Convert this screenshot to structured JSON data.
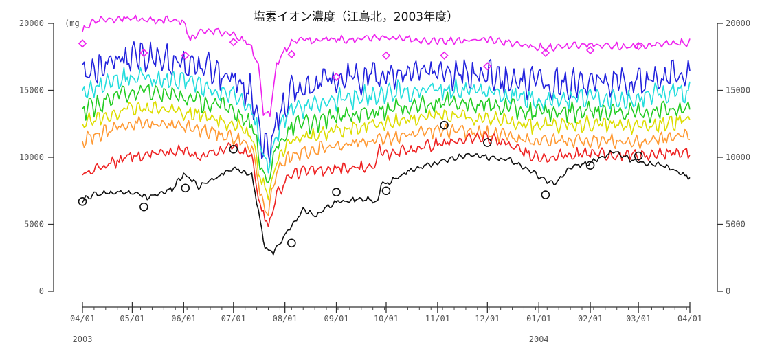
{
  "chart_data": {
    "type": "line",
    "title": "塩素イオン濃度（江島北，2003年度）",
    "unit_label": "(mg",
    "ylim": [
      0,
      20000
    ],
    "y_ticks": [
      0,
      5000,
      10000,
      15000,
      20000
    ],
    "y_tick_labels": [
      "0",
      "5000",
      "10000",
      "15000",
      "20000"
    ],
    "x_range": [
      "2003-04-01",
      "2004-04-01"
    ],
    "x_ticks": [
      "2003-04-01",
      "2003-05-01",
      "2003-06-01",
      "2003-07-01",
      "2003-08-01",
      "2003-09-01",
      "2003-10-01",
      "2003-11-01",
      "2003-12-01",
      "2004-01-01",
      "2004-02-01",
      "2004-03-01",
      "2004-04-01"
    ],
    "x_tick_labels": [
      "04/01",
      "05/01",
      "06/01",
      "07/01",
      "08/01",
      "09/01",
      "10/01",
      "11/01",
      "12/01",
      "01/01",
      "02/01",
      "03/01",
      "04/01"
    ],
    "year_labels": [
      {
        "date": "2003-04-01",
        "text": "2003"
      },
      {
        "date": "2004-01-01",
        "text": "2004"
      }
    ],
    "grid": false,
    "series": [
      {
        "color": "#ee22ee",
        "noise": 350,
        "points": [
          [
            "2003-04-01",
            19500
          ],
          [
            "2003-04-10",
            20300
          ],
          [
            "2003-05-01",
            20400
          ],
          [
            "2003-05-10",
            20200
          ],
          [
            "2003-05-20",
            20300
          ],
          [
            "2003-06-01",
            20100
          ],
          [
            "2003-06-05",
            18800
          ],
          [
            "2003-06-15",
            19600
          ],
          [
            "2003-07-01",
            19100
          ],
          [
            "2003-07-10",
            18600
          ],
          [
            "2003-07-16",
            17000
          ],
          [
            "2003-07-19",
            13400
          ],
          [
            "2003-07-23",
            13200
          ],
          [
            "2003-07-27",
            17000
          ],
          [
            "2003-08-05",
            18700
          ],
          [
            "2003-09-01",
            18800
          ],
          [
            "2003-10-01",
            18900
          ],
          [
            "2003-11-01",
            18700
          ],
          [
            "2003-12-01",
            18800
          ],
          [
            "2004-01-01",
            18200
          ],
          [
            "2004-02-01",
            18400
          ],
          [
            "2004-03-01",
            18300
          ],
          [
            "2004-04-01",
            18600
          ]
        ]
      },
      {
        "color": "#2222dd",
        "noise": 1500,
        "points": [
          [
            "2003-04-01",
            16300
          ],
          [
            "2003-05-01",
            17500
          ],
          [
            "2003-06-01",
            17000
          ],
          [
            "2003-07-01",
            16000
          ],
          [
            "2003-07-12",
            14800
          ],
          [
            "2003-07-18",
            11200
          ],
          [
            "2003-07-22",
            10200
          ],
          [
            "2003-07-27",
            12800
          ],
          [
            "2003-08-05",
            15000
          ],
          [
            "2003-09-01",
            15800
          ],
          [
            "2003-10-01",
            16200
          ],
          [
            "2003-11-01",
            16300
          ],
          [
            "2003-12-01",
            16000
          ],
          [
            "2004-01-01",
            15400
          ],
          [
            "2004-02-01",
            15600
          ],
          [
            "2004-03-01",
            15500
          ],
          [
            "2004-04-01",
            16400
          ]
        ]
      },
      {
        "color": "#22dddd",
        "noise": 1000,
        "points": [
          [
            "2003-04-01",
            15000
          ],
          [
            "2003-05-01",
            16000
          ],
          [
            "2003-06-01",
            15700
          ],
          [
            "2003-07-01",
            14600
          ],
          [
            "2003-07-12",
            13600
          ],
          [
            "2003-07-18",
            10400
          ],
          [
            "2003-07-22",
            9500
          ],
          [
            "2003-07-27",
            11800
          ],
          [
            "2003-08-05",
            13500
          ],
          [
            "2003-09-01",
            14300
          ],
          [
            "2003-10-01",
            14800
          ],
          [
            "2003-11-01",
            15100
          ],
          [
            "2003-12-01",
            14900
          ],
          [
            "2004-01-01",
            14300
          ],
          [
            "2004-02-01",
            14500
          ],
          [
            "2004-03-01",
            14400
          ],
          [
            "2004-04-01",
            15000
          ]
        ]
      },
      {
        "color": "#22cc22",
        "noise": 900,
        "points": [
          [
            "2003-04-01",
            13500
          ],
          [
            "2003-05-01",
            15000
          ],
          [
            "2003-06-01",
            14500
          ],
          [
            "2003-07-01",
            13500
          ],
          [
            "2003-07-12",
            12600
          ],
          [
            "2003-07-18",
            9200
          ],
          [
            "2003-07-22",
            8300
          ],
          [
            "2003-07-27",
            10800
          ],
          [
            "2003-08-05",
            12300
          ],
          [
            "2003-09-01",
            13000
          ],
          [
            "2003-10-01",
            13600
          ],
          [
            "2003-11-01",
            14100
          ],
          [
            "2003-12-01",
            13900
          ],
          [
            "2004-01-01",
            13300
          ],
          [
            "2004-02-01",
            13500
          ],
          [
            "2004-03-01",
            13300
          ],
          [
            "2004-04-01",
            13800
          ]
        ]
      },
      {
        "color": "#dddd00",
        "noise": 750,
        "points": [
          [
            "2003-04-01",
            12500
          ],
          [
            "2003-05-01",
            13800
          ],
          [
            "2003-06-01",
            13400
          ],
          [
            "2003-07-01",
            12500
          ],
          [
            "2003-07-12",
            11700
          ],
          [
            "2003-07-18",
            8100
          ],
          [
            "2003-07-22",
            7200
          ],
          [
            "2003-07-27",
            9800
          ],
          [
            "2003-08-05",
            11300
          ],
          [
            "2003-09-01",
            12000
          ],
          [
            "2003-10-01",
            12600
          ],
          [
            "2003-11-01",
            13100
          ],
          [
            "2003-12-01",
            12900
          ],
          [
            "2004-01-01",
            12300
          ],
          [
            "2004-02-01",
            12500
          ],
          [
            "2004-03-01",
            12300
          ],
          [
            "2004-04-01",
            12800
          ]
        ]
      },
      {
        "color": "#ff9933",
        "noise": 650,
        "points": [
          [
            "2003-04-01",
            11300
          ],
          [
            "2003-05-01",
            12600
          ],
          [
            "2003-06-01",
            12300
          ],
          [
            "2003-07-01",
            11500
          ],
          [
            "2003-07-12",
            10800
          ],
          [
            "2003-07-18",
            6800
          ],
          [
            "2003-07-22",
            6000
          ],
          [
            "2003-07-27",
            8800
          ],
          [
            "2003-08-05",
            10200
          ],
          [
            "2003-09-01",
            10900
          ],
          [
            "2003-10-01",
            11400
          ],
          [
            "2003-11-01",
            12000
          ],
          [
            "2003-12-01",
            11800
          ],
          [
            "2004-01-01",
            11200
          ],
          [
            "2004-02-01",
            11300
          ],
          [
            "2004-03-01",
            11100
          ],
          [
            "2004-04-01",
            11700
          ]
        ]
      },
      {
        "color": "#ee2222",
        "noise": 550,
        "points": [
          [
            "2003-04-01",
            8800
          ],
          [
            "2003-05-01",
            10100
          ],
          [
            "2003-06-01",
            10500
          ],
          [
            "2003-06-10",
            10100
          ],
          [
            "2003-07-01",
            10800
          ],
          [
            "2003-07-12",
            10000
          ],
          [
            "2003-07-18",
            6000
          ],
          [
            "2003-07-22",
            4900
          ],
          [
            "2003-07-27",
            7200
          ],
          [
            "2003-08-05",
            8800
          ],
          [
            "2003-09-01",
            9200
          ],
          [
            "2003-09-25",
            9300
          ],
          [
            "2003-09-27",
            10700
          ],
          [
            "2003-10-01",
            10200
          ],
          [
            "2003-11-01",
            11000
          ],
          [
            "2003-12-01",
            11500
          ],
          [
            "2004-01-01",
            10000
          ],
          [
            "2004-02-01",
            10300
          ],
          [
            "2004-03-01",
            10100
          ],
          [
            "2004-04-01",
            10400
          ]
        ]
      },
      {
        "color": "#111111",
        "noise": 250,
        "points": [
          [
            "2003-04-01",
            6800
          ],
          [
            "2003-04-10",
            7300
          ],
          [
            "2003-05-01",
            7400
          ],
          [
            "2003-05-10",
            7000
          ],
          [
            "2003-05-25",
            7600
          ],
          [
            "2003-06-01",
            8800
          ],
          [
            "2003-06-10",
            7800
          ],
          [
            "2003-07-01",
            9200
          ],
          [
            "2003-07-12",
            8700
          ],
          [
            "2003-07-16",
            6000
          ],
          [
            "2003-07-20",
            3200
          ],
          [
            "2003-07-25",
            2900
          ],
          [
            "2003-08-01",
            4200
          ],
          [
            "2003-08-12",
            6100
          ],
          [
            "2003-08-20",
            5700
          ],
          [
            "2003-09-01",
            6700
          ],
          [
            "2003-09-20",
            6900
          ],
          [
            "2003-09-26",
            6700
          ],
          [
            "2003-09-28",
            8200
          ],
          [
            "2003-10-01",
            8000
          ],
          [
            "2003-10-15",
            9000
          ],
          [
            "2003-11-01",
            9600
          ],
          [
            "2003-11-20",
            10200
          ],
          [
            "2003-12-01",
            10000
          ],
          [
            "2003-12-15",
            9800
          ],
          [
            "2004-01-01",
            8600
          ],
          [
            "2004-01-10",
            8000
          ],
          [
            "2004-01-20",
            9300
          ],
          [
            "2004-02-01",
            9600
          ],
          [
            "2004-02-15",
            10400
          ],
          [
            "2004-03-01",
            9600
          ],
          [
            "2004-03-15",
            9400
          ],
          [
            "2004-04-01",
            8500
          ]
        ]
      }
    ],
    "diamond_markers": {
      "color": "#ee22ee",
      "points": [
        [
          "2003-04-01",
          18500
        ],
        [
          "2003-05-08",
          17800
        ],
        [
          "2003-06-02",
          17600
        ],
        [
          "2003-07-01",
          18600
        ],
        [
          "2003-08-05",
          17700
        ],
        [
          "2003-09-01",
          16000
        ],
        [
          "2003-10-01",
          17600
        ],
        [
          "2003-11-05",
          17600
        ],
        [
          "2003-12-01",
          16800
        ],
        [
          "2004-01-05",
          17800
        ],
        [
          "2004-02-01",
          18000
        ],
        [
          "2004-03-01",
          18300
        ]
      ]
    },
    "circle_markers": {
      "color": "#111111",
      "points": [
        [
          "2003-04-01",
          6700
        ],
        [
          "2003-05-08",
          6300
        ],
        [
          "2003-06-02",
          7700
        ],
        [
          "2003-07-01",
          10600
        ],
        [
          "2003-08-05",
          3600
        ],
        [
          "2003-09-01",
          7400
        ],
        [
          "2003-10-01",
          7500
        ],
        [
          "2003-11-05",
          12400
        ],
        [
          "2003-12-01",
          11100
        ],
        [
          "2004-01-05",
          7200
        ],
        [
          "2004-02-01",
          9400
        ],
        [
          "2004-03-01",
          10100
        ]
      ]
    }
  }
}
